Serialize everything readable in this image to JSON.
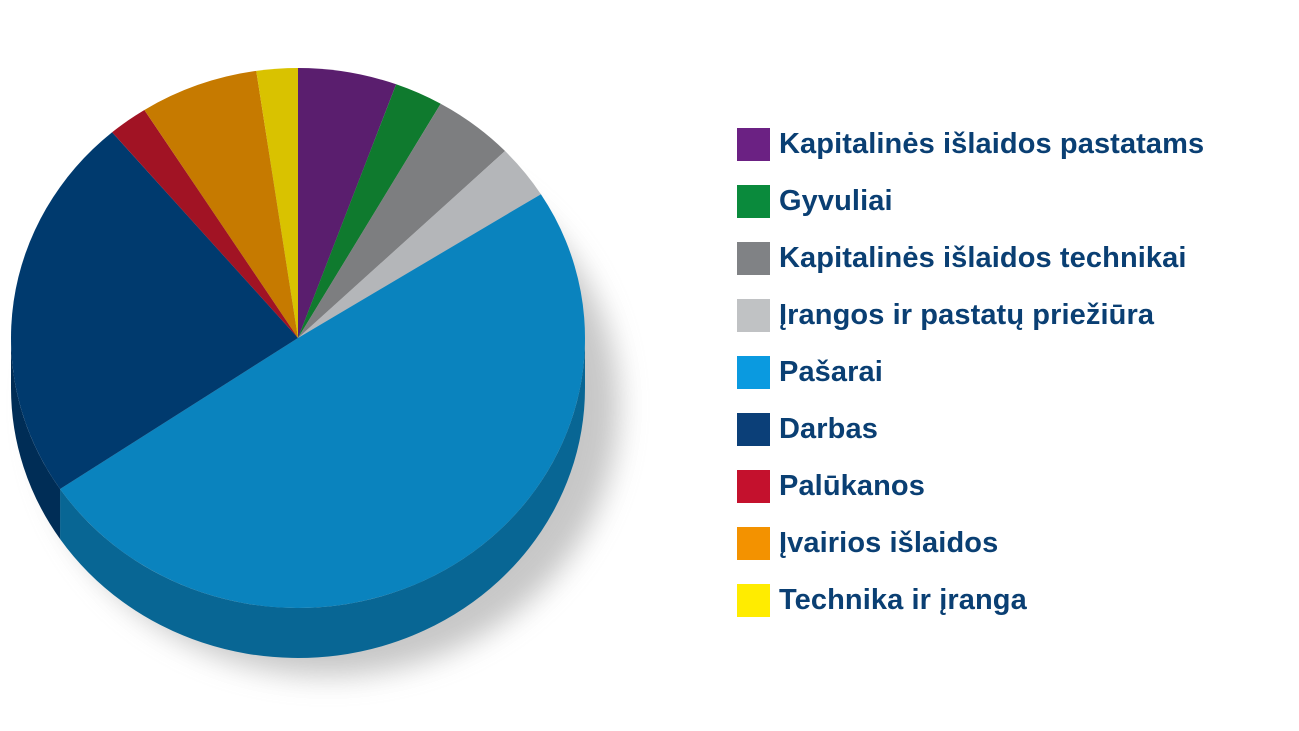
{
  "chart_data": {
    "type": "pie",
    "title": "",
    "three_d": true,
    "legend_position": "right",
    "unit": "%",
    "slices": [
      {
        "label": "Kapitalinės išlaidos pastatams",
        "value": 5.5,
        "color": "#5a1e6e",
        "legend_color": "#6b2183"
      },
      {
        "label": "Gyvuliai",
        "value": 2.7,
        "color": "#0f7a2e",
        "legend_color": "#0a8a3c"
      },
      {
        "label": "Kapitalinės išlaidos technikai",
        "value": 4.5,
        "color": "#7d7e80",
        "legend_color": "#808285"
      },
      {
        "label": "Įrangos ir pastatų priežiūra",
        "value": 3.2,
        "color": "#b4b6b9",
        "legend_color": "#c0c2c4"
      },
      {
        "label": "Pašarai",
        "value": 49.0,
        "color": "#0a83be",
        "legend_color": "#0a9ae0"
      },
      {
        "label": "Darbas",
        "value": 23.0,
        "color": "#003a6e",
        "legend_color": "#0b3f78"
      },
      {
        "label": "Palūkanos",
        "value": 2.2,
        "color": "#a11324",
        "legend_color": "#c4112d"
      },
      {
        "label": "Įvairios išlaidos",
        "value": 6.6,
        "color": "#c67a00",
        "legend_color": "#f39200"
      },
      {
        "label": "Technika ir įranga",
        "value": 2.3,
        "color": "#d9c200",
        "legend_color": "#ffec00"
      }
    ]
  }
}
